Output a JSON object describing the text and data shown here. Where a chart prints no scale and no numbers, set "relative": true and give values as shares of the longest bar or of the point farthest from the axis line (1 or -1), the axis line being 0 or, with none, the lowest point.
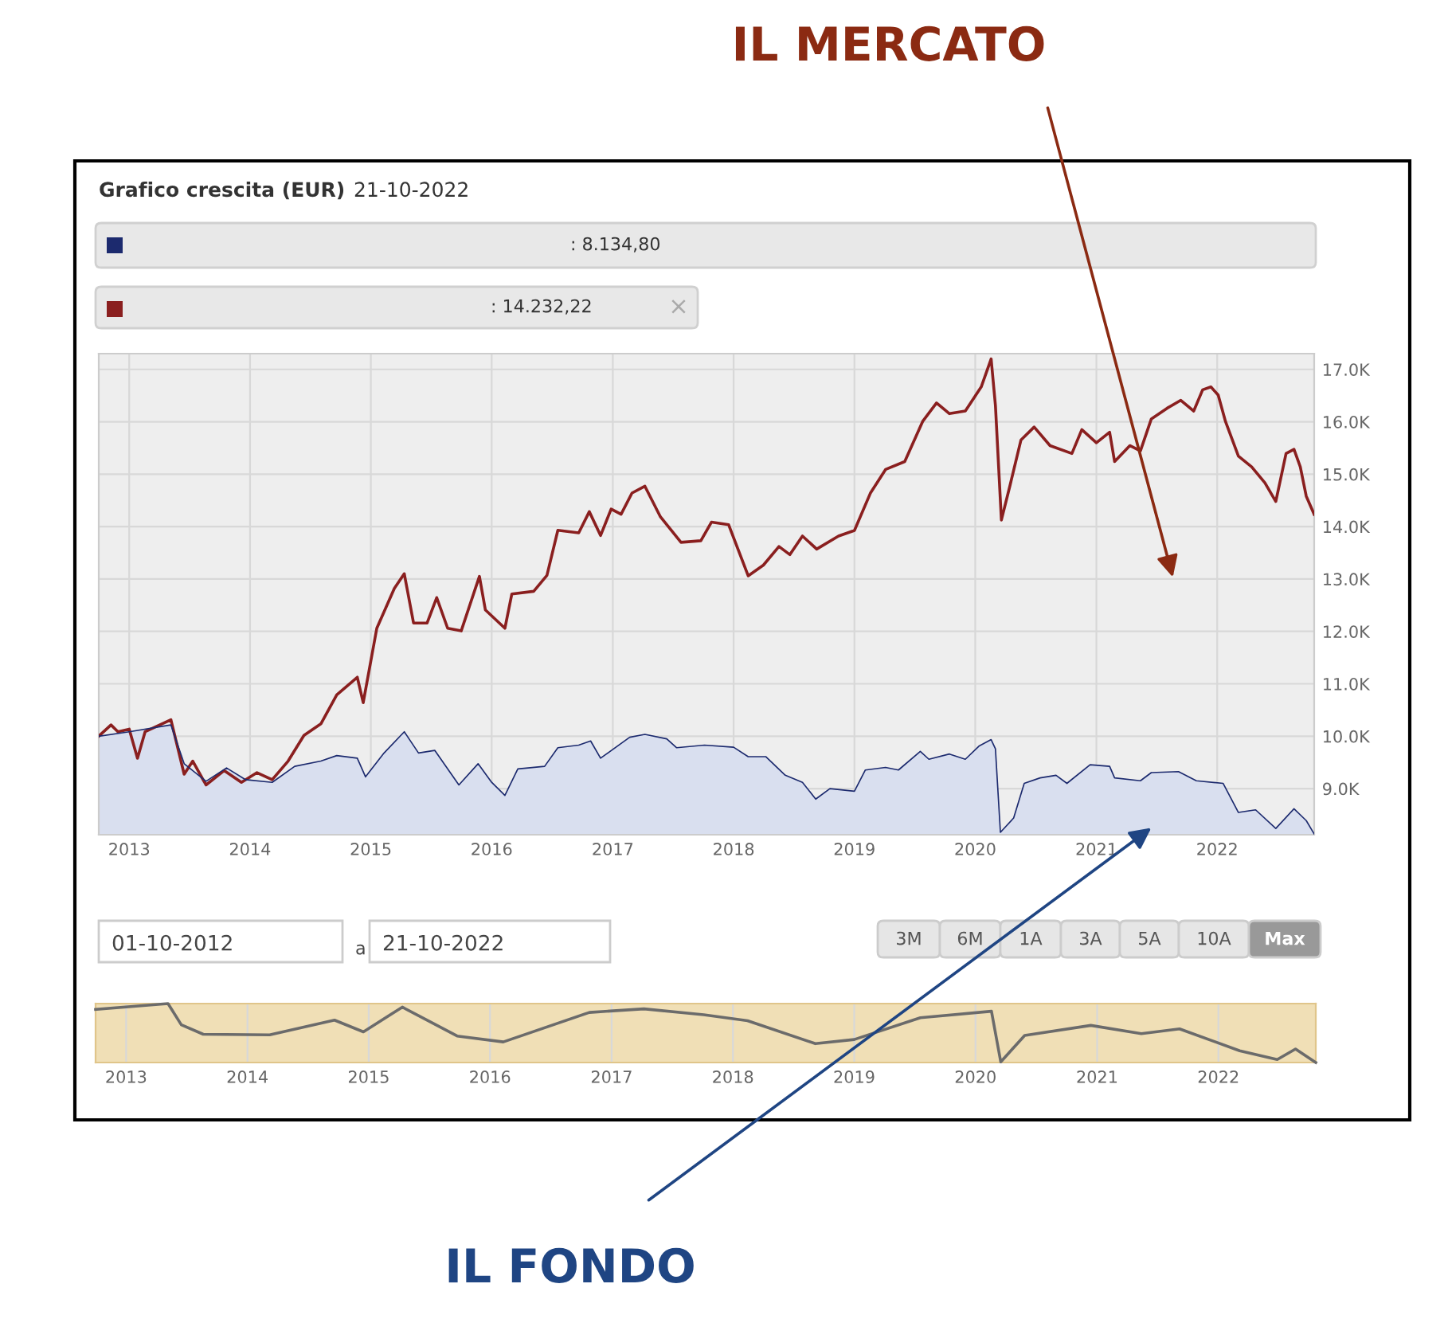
{
  "chart_data": [
    {
      "type": "line",
      "title": "Grafico crescita (EUR)",
      "subtitle": "21-10-2022",
      "xlim": [
        "2012-10-01",
        "2022-10-21"
      ],
      "xticks": [
        {
          "value": "2013-01-01",
          "label": "2013"
        },
        {
          "value": "2014-01-01",
          "label": "2014"
        },
        {
          "value": "2015-01-01",
          "label": "2015"
        },
        {
          "value": "2016-01-01",
          "label": "2016"
        },
        {
          "value": "2017-01-01",
          "label": "2017"
        },
        {
          "value": "2018-01-01",
          "label": "2018"
        },
        {
          "value": "2019-01-01",
          "label": "2019"
        },
        {
          "value": "2020-01-01",
          "label": "2020"
        },
        {
          "value": "2021-01-01",
          "label": "2021"
        },
        {
          "value": "2022-01-01",
          "label": "2022"
        }
      ],
      "ylim": [
        8120,
        17300
      ],
      "yticks": [
        {
          "value": 9000,
          "label": "9.0K"
        },
        {
          "value": 10000,
          "label": "10.0K"
        },
        {
          "value": 11000,
          "label": "11.0K"
        },
        {
          "value": 12000,
          "label": "12.0K"
        },
        {
          "value": 13000,
          "label": "13.0K"
        },
        {
          "value": 14000,
          "label": "14.0K"
        },
        {
          "value": 15000,
          "label": "15.0K"
        },
        {
          "value": 16000,
          "label": "16.0K"
        },
        {
          "value": 17000,
          "label": "17.0K"
        }
      ],
      "grid": true,
      "series": [
        {
          "type": "area",
          "color": "#1c2a6e",
          "x": [
            "2012-10-01",
            "2013-01-01",
            "2013-05-07",
            "2013-06-16",
            "2013-08-21",
            "2013-10-22",
            "2013-12-19",
            "2014-03-09",
            "2014-05-16",
            "2014-08-03",
            "2014-09-20",
            "2014-11-21",
            "2014-12-16",
            "2015-02-10",
            "2015-04-12",
            "2015-05-25",
            "2015-07-13",
            "2015-09-24",
            "2015-11-21",
            "2016-01-01",
            "2016-02-10",
            "2016-03-20",
            "2016-06-09",
            "2016-07-19",
            "2016-09-20",
            "2016-10-26",
            "2016-11-25",
            "2017-02-21",
            "2017-04-08",
            "2017-06-13",
            "2017-07-13",
            "2017-10-05",
            "2018-01-01",
            "2018-02-14",
            "2018-04-08",
            "2018-06-06",
            "2018-07-28",
            "2018-09-06",
            "2018-10-19",
            "2019-01-01",
            "2019-02-03",
            "2019-04-05",
            "2019-05-14",
            "2019-07-19",
            "2019-08-14",
            "2019-10-15",
            "2019-12-02",
            "2020-01-12",
            "2020-02-18",
            "2020-03-02",
            "2020-03-17",
            "2020-04-26",
            "2020-05-28",
            "2020-07-15",
            "2020-09-01",
            "2020-10-04",
            "2020-12-13",
            "2021-02-10",
            "2021-02-25",
            "2021-05-14",
            "2021-06-16",
            "2021-09-06",
            "2021-10-30",
            "2022-01-19",
            "2022-03-06",
            "2022-04-27",
            "2022-06-27",
            "2022-08-21",
            "2022-09-27",
            "2022-10-21"
          ],
          "values": [
            10000,
            10085,
            10215,
            9475,
            9140,
            9395,
            9170,
            9120,
            9425,
            9525,
            9630,
            9580,
            9225,
            9680,
            10085,
            9680,
            9730,
            9070,
            9475,
            9120,
            8870,
            9375,
            9425,
            9780,
            9830,
            9910,
            9580,
            9980,
            10035,
            9950,
            9780,
            9830,
            9790,
            9610,
            9610,
            9255,
            9120,
            8800,
            9000,
            8950,
            9355,
            9405,
            9355,
            9710,
            9560,
            9660,
            9560,
            9810,
            9935,
            9760,
            8165,
            8440,
            9100,
            9205,
            9255,
            9100,
            9455,
            9425,
            9205,
            9150,
            9305,
            9325,
            9150,
            9100,
            8545,
            8595,
            8240,
            8615,
            8390,
            8135
          ]
        },
        {
          "type": "line",
          "color": "#8a1f1f",
          "x": [
            "2012-10-01",
            "2012-11-07",
            "2012-11-28",
            "2013-01-01",
            "2013-01-26",
            "2013-02-18",
            "2013-05-07",
            "2013-06-16",
            "2013-07-12",
            "2013-08-21",
            "2013-10-15",
            "2013-12-06",
            "2014-01-22",
            "2014-03-09",
            "2014-04-26",
            "2014-06-13",
            "2014-08-03",
            "2014-09-20",
            "2014-11-21",
            "2014-12-09",
            "2015-01-19",
            "2015-03-13",
            "2015-04-12",
            "2015-05-10",
            "2015-06-20",
            "2015-07-19",
            "2015-08-21",
            "2015-10-01",
            "2015-11-25",
            "2015-12-13",
            "2016-02-10",
            "2016-03-02",
            "2016-05-07",
            "2016-06-16",
            "2016-07-19",
            "2016-09-20",
            "2016-10-22",
            "2016-11-25",
            "2016-12-27",
            "2017-01-26",
            "2017-02-28",
            "2017-04-08",
            "2017-05-25",
            "2017-07-26",
            "2017-09-24",
            "2017-10-26",
            "2017-12-17",
            "2018-02-14",
            "2018-04-01",
            "2018-05-18",
            "2018-06-20",
            "2018-07-28",
            "2018-09-09",
            "2018-11-14",
            "2019-01-01",
            "2019-02-18",
            "2019-04-05",
            "2019-06-02",
            "2019-07-26",
            "2019-09-06",
            "2019-10-15",
            "2019-12-02",
            "2020-01-19",
            "2020-02-18",
            "2020-03-02",
            "2020-03-20",
            "2020-04-15",
            "2020-05-18",
            "2020-06-27",
            "2020-08-14",
            "2020-10-19",
            "2020-11-18",
            "2021-01-01",
            "2021-02-10",
            "2021-02-25",
            "2021-04-12",
            "2021-05-14",
            "2021-06-16",
            "2021-08-03",
            "2021-09-13",
            "2021-10-22",
            "2021-11-18",
            "2021-12-13",
            "2022-01-04",
            "2022-01-26",
            "2022-03-06",
            "2022-04-15",
            "2022-05-25",
            "2022-06-27",
            "2022-07-28",
            "2022-08-21",
            "2022-09-09",
            "2022-09-27",
            "2022-10-21"
          ],
          "values": [
            10000,
            10215,
            10085,
            10135,
            9580,
            10085,
            10315,
            9275,
            9525,
            9070,
            9345,
            9120,
            9305,
            9170,
            9525,
            10015,
            10235,
            10790,
            11125,
            10640,
            12060,
            12820,
            13100,
            12160,
            12160,
            12645,
            12060,
            12010,
            13050,
            12410,
            12060,
            12715,
            12765,
            13070,
            13930,
            13880,
            14285,
            13830,
            14335,
            14235,
            14640,
            14770,
            14185,
            13700,
            13730,
            14085,
            14035,
            13060,
            13265,
            13620,
            13465,
            13820,
            13570,
            13820,
            13925,
            14635,
            15090,
            15240,
            16005,
            16360,
            16155,
            16205,
            16665,
            17200,
            16310,
            14125,
            14785,
            15650,
            15900,
            15545,
            15395,
            15850,
            15600,
            15800,
            15240,
            15545,
            15445,
            16055,
            16260,
            16410,
            16205,
            16610,
            16665,
            16510,
            16005,
            15345,
            15140,
            14835,
            14480,
            15395,
            15475,
            15140,
            14580,
            14232
          ]
        }
      ],
      "annotations": [
        ": 8.134,80",
        ": 14.232,22",
        "×",
        "IL MERCATO",
        "IL FONDO"
      ]
    },
    {
      "type": "line",
      "relative": true,
      "grid": "x",
      "xlim": [
        "2012-10-01",
        "2022-10-21"
      ],
      "xticks": [
        {
          "value": "2013-01-01",
          "label": "2013"
        },
        {
          "value": "2014-01-01",
          "label": "2014"
        },
        {
          "value": "2015-01-01",
          "label": "2015"
        },
        {
          "value": "2016-01-01",
          "label": "2016"
        },
        {
          "value": "2017-01-01",
          "label": "2017"
        },
        {
          "value": "2018-01-01",
          "label": "2018"
        },
        {
          "value": "2019-01-01",
          "label": "2019"
        },
        {
          "value": "2020-01-01",
          "label": "2020"
        },
        {
          "value": "2021-01-01",
          "label": "2021"
        },
        {
          "value": "2022-01-01",
          "label": "2022"
        }
      ],
      "series": [
        {
          "color": "#6b6b6b",
          "x": [
            "2012-10-01",
            "2013-05-07",
            "2013-06-16",
            "2013-08-21",
            "2014-03-09",
            "2014-09-20",
            "2014-12-16",
            "2015-04-12",
            "2015-09-24",
            "2016-02-10",
            "2016-10-26",
            "2017-04-08",
            "2017-10-05",
            "2018-02-14",
            "2018-09-06",
            "2019-01-01",
            "2019-07-19",
            "2020-02-18",
            "2020-03-17",
            "2020-05-28",
            "2020-12-13",
            "2021-05-14",
            "2021-09-06",
            "2022-03-06",
            "2022-06-27",
            "2022-08-21",
            "2022-10-21"
          ],
          "values": [
            0.9,
            1.0,
            0.64,
            0.48,
            0.47,
            0.72,
            0.52,
            0.94,
            0.45,
            0.35,
            0.85,
            0.91,
            0.81,
            0.71,
            0.32,
            0.39,
            0.76,
            0.87,
            0.01,
            0.46,
            0.63,
            0.49,
            0.57,
            0.2,
            0.05,
            0.23,
            0.0
          ]
        }
      ],
      "annotations": [
        "01-10-2012",
        "a",
        "21-10-2022",
        "3M",
        "6M",
        "1A",
        "3A",
        "5A",
        "10A",
        "Max"
      ]
    }
  ]
}
